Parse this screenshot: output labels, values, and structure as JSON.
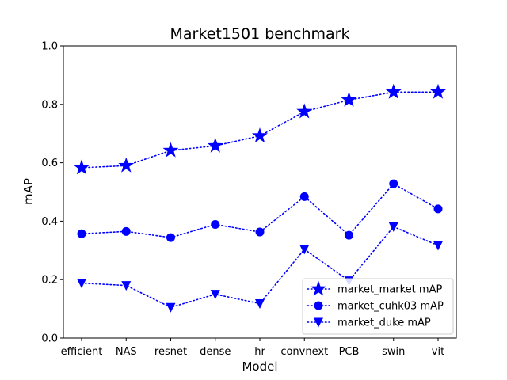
{
  "chart_data": {
    "type": "line",
    "title": "Market1501 benchmark",
    "xlabel": "Model",
    "ylabel": "mAP",
    "categories": [
      "efficient",
      "NAS",
      "resnet",
      "dense",
      "hr",
      "convnext",
      "PCB",
      "swin",
      "vit"
    ],
    "ylim": [
      0.0,
      1.0
    ],
    "yticks": [
      "0.0",
      "0.2",
      "0.4",
      "0.6",
      "0.8",
      "1.0"
    ],
    "grid": false,
    "legend_position": "lower-right",
    "line_color": "#0000ff",
    "series": [
      {
        "name": "market_market mAP",
        "marker": "star",
        "values": [
          0.583,
          0.59,
          0.642,
          0.658,
          0.692,
          0.775,
          0.815,
          0.842,
          0.842
        ]
      },
      {
        "name": "market_cuhk03 mAP",
        "marker": "circle",
        "values": [
          0.357,
          0.365,
          0.344,
          0.389,
          0.363,
          0.484,
          0.352,
          0.528,
          0.442
        ]
      },
      {
        "name": "market_duke mAP",
        "marker": "triangle-down",
        "values": [
          0.188,
          0.18,
          0.105,
          0.15,
          0.118,
          0.304,
          0.196,
          0.381,
          0.317
        ]
      }
    ]
  }
}
